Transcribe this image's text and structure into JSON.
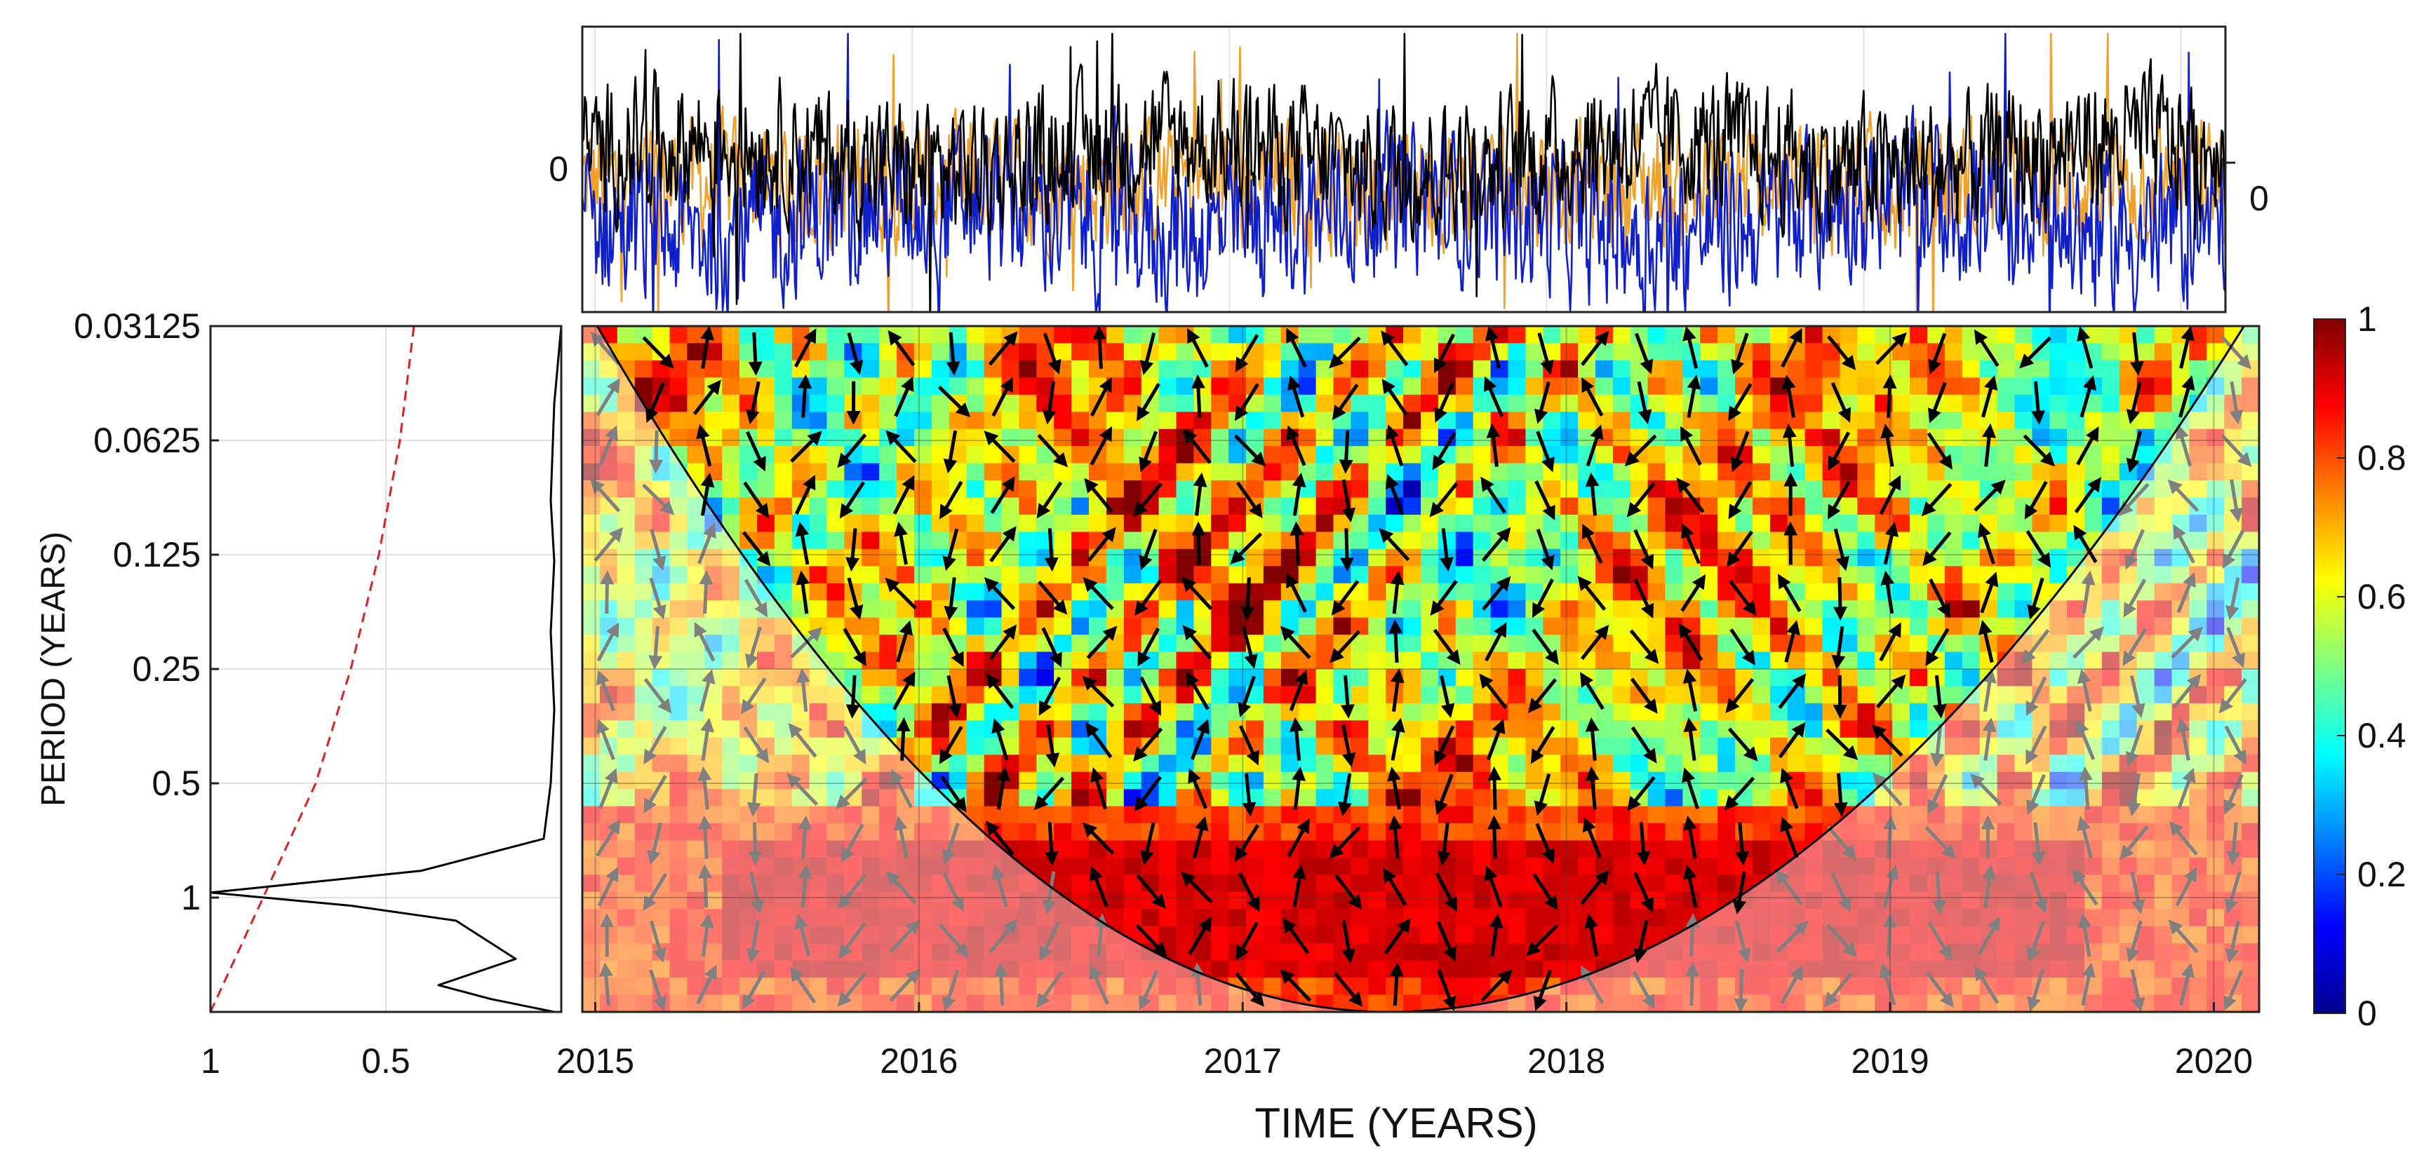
{
  "chart_data": [
    {
      "id": "time_series",
      "type": "line",
      "title": "",
      "ylabel_left": "0",
      "ylabel_right": "0",
      "xlim": [
        2014.96,
        2020.14
      ],
      "series": [
        {
          "name": "series-black",
          "color": "#000000",
          "offset": 0.3,
          "amp": 1.0
        },
        {
          "name": "series-blue",
          "color": "#1020c8",
          "offset": -0.35,
          "amp": 1.15
        },
        {
          "name": "series-orange",
          "color": "#f0a12a",
          "offset": 0.0,
          "amp": 0.95
        }
      ]
    },
    {
      "id": "global_spectrum",
      "type": "line",
      "xlabel_ticks": [
        "1",
        "0.5"
      ],
      "x_ticks_values": [
        1,
        0.5
      ],
      "xlim": [
        1,
        0.0
      ],
      "yscale": "log2",
      "y_ticks": [
        "0.03125",
        "0.0625",
        "0.125",
        "0.25",
        "0.5",
        "1"
      ],
      "y_ticks_values": [
        0.03125,
        0.0625,
        0.125,
        0.25,
        0.5,
        1
      ],
      "ylabel": "PERIOD (YEARS)",
      "significance_curve": {
        "name": "significance",
        "color": "#e02020",
        "style": "dashed",
        "points": [
          [
            1.0,
            2.0
          ],
          [
            0.85,
            1.0
          ],
          [
            0.7,
            0.5
          ],
          [
            0.6,
            0.25
          ],
          [
            0.52,
            0.125
          ],
          [
            0.46,
            0.0625
          ],
          [
            0.42,
            0.03125
          ]
        ]
      },
      "spectrum_curve": {
        "name": "global-power",
        "color": "#000000",
        "points": [
          [
            0.0,
            0.03125
          ],
          [
            0.02,
            0.05
          ],
          [
            0.03,
            0.09
          ],
          [
            0.02,
            0.13
          ],
          [
            0.03,
            0.2
          ],
          [
            0.02,
            0.32
          ],
          [
            0.03,
            0.5
          ],
          [
            0.05,
            0.7
          ],
          [
            0.4,
            0.85
          ],
          [
            1.0,
            0.97
          ],
          [
            0.6,
            1.05
          ],
          [
            0.3,
            1.15
          ],
          [
            0.13,
            1.45
          ],
          [
            0.35,
            1.7
          ],
          [
            0.2,
            1.85
          ],
          [
            0.02,
            2.0
          ]
        ]
      }
    },
    {
      "id": "coherence",
      "type": "heatmap",
      "xlabel": "TIME (YEARS)",
      "x_ticks": [
        "2015",
        "2016",
        "2017",
        "2018",
        "2019",
        "2020"
      ],
      "x_ticks_values": [
        2015,
        2016,
        2017,
        2018,
        2019,
        2020
      ],
      "xlim": [
        2014.96,
        2020.14
      ],
      "yscale": "log2",
      "ylim": [
        0.03125,
        2.0
      ],
      "colorbar": {
        "range": [
          0,
          1
        ],
        "ticks": [
          "0",
          "0.2",
          "0.4",
          "0.6",
          "0.8",
          "1"
        ],
        "ticks_values": [
          0,
          0.2,
          0.4,
          0.6,
          0.8,
          1
        ],
        "colormap": "jet"
      },
      "cone_of_influence": "parabolic, apex near 2017.5 at period 2",
      "high_coherence_band": {
        "period_range": [
          0.8,
          1.5
        ],
        "time_range": [
          2016.0,
          2019.3
        ],
        "value": 0.95
      }
    }
  ]
}
